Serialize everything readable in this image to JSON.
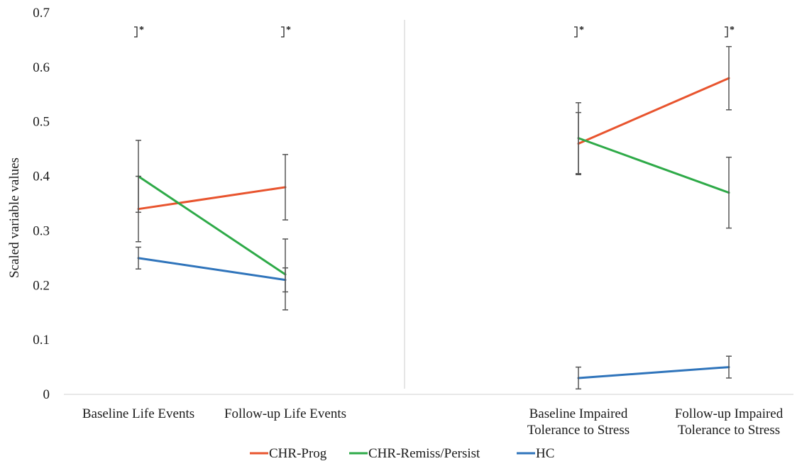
{
  "chart_data": {
    "type": "line",
    "ylabel": "Scaled variable values",
    "ylim": [
      0,
      0.7
    ],
    "yticks": [
      0,
      0.1,
      0.2,
      0.3,
      0.4,
      0.5,
      0.6,
      0.7
    ],
    "ytick_labels": [
      "0",
      "0.1",
      "0.2",
      "0.3",
      "0.4",
      "0.5",
      "0.6",
      "0.7"
    ],
    "grid": false,
    "legend_position": "bottom",
    "categories": [
      [
        "Baseline Life Events"
      ],
      [
        "Follow-up Life Events"
      ],
      [
        "Baseline Impaired",
        "Tolerance to Stress"
      ],
      [
        "Follow-up Impaired",
        "Tolerance to Stress"
      ]
    ],
    "panels": [
      [
        0,
        1
      ],
      [
        2,
        3
      ]
    ],
    "series": [
      {
        "name": "CHR-Prog",
        "color": "#e8542e",
        "values": [
          0.34,
          0.38,
          0.46,
          0.58
        ],
        "error": [
          0.06,
          0.06,
          0.057,
          0.058
        ]
      },
      {
        "name": "CHR-Remiss/Persist",
        "color": "#2eaa48",
        "values": [
          0.4,
          0.22,
          0.47,
          0.37
        ],
        "error": [
          0.066,
          0.065,
          0.065,
          0.065
        ]
      },
      {
        "name": "HC",
        "color": "#2f74bb",
        "values": [
          0.25,
          0.21,
          0.03,
          0.05
        ],
        "error": [
          0.02,
          0.022,
          0.02,
          0.02
        ]
      }
    ],
    "significance": [
      {
        "category": 0,
        "label": "*"
      },
      {
        "category": 1,
        "label": "*"
      },
      {
        "category": 2,
        "label": "*"
      },
      {
        "category": 3,
        "label": "*"
      }
    ],
    "divider_color": "#cccccc",
    "errorbar_color": "#555555"
  }
}
